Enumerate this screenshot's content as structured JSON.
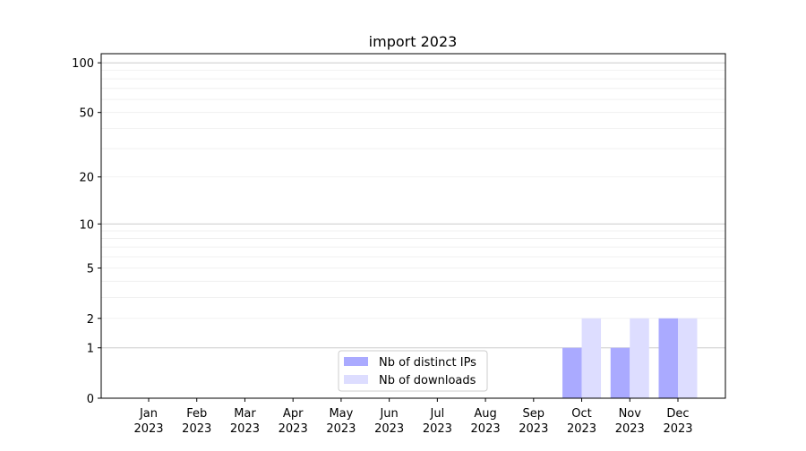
{
  "chart_data": {
    "type": "bar",
    "title": "import 2023",
    "xlabel": "",
    "ylabel": "",
    "yscale": "symlog",
    "ylim": [
      0,
      113
    ],
    "yticks": [
      0,
      1,
      2,
      5,
      10,
      20,
      50,
      100
    ],
    "grid": true,
    "legend_position": "bottom-center",
    "categories": [
      [
        "Jan",
        "2023"
      ],
      [
        "Feb",
        "2023"
      ],
      [
        "Mar",
        "2023"
      ],
      [
        "Apr",
        "2023"
      ],
      [
        "May",
        "2023"
      ],
      [
        "Jun",
        "2023"
      ],
      [
        "Jul",
        "2023"
      ],
      [
        "Aug",
        "2023"
      ],
      [
        "Sep",
        "2023"
      ],
      [
        "Oct",
        "2023"
      ],
      [
        "Nov",
        "2023"
      ],
      [
        "Dec",
        "2023"
      ]
    ],
    "series": [
      {
        "name": "Nb of distinct IPs",
        "color": "#aaaaff",
        "values": [
          0,
          0,
          0,
          0,
          0,
          0,
          0,
          0,
          0,
          1,
          1,
          2
        ]
      },
      {
        "name": "Nb of downloads",
        "color": "#ddddff",
        "values": [
          0,
          0,
          0,
          0,
          0,
          0,
          0,
          0,
          0,
          2,
          2,
          2
        ]
      }
    ]
  }
}
